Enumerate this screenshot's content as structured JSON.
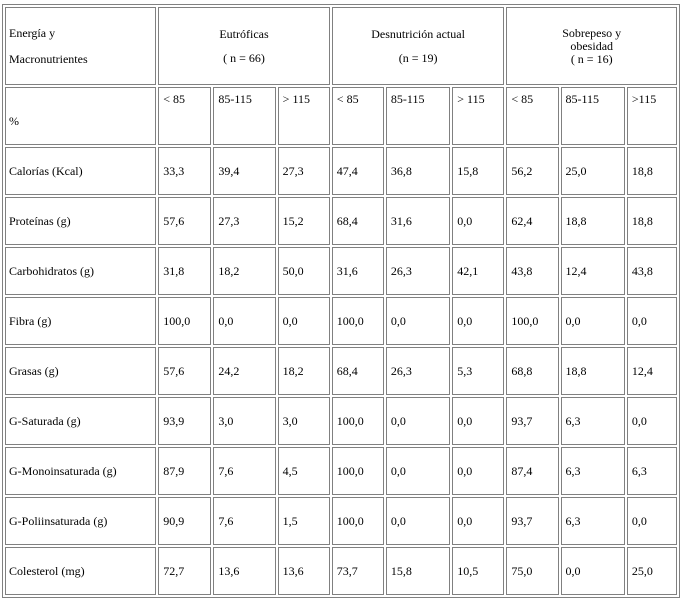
{
  "header": {
    "energy_line1": "Energía y",
    "energy_line2": "Macronutrientes",
    "groups": [
      {
        "title": "Eutróficas",
        "n": "( n = 66)"
      },
      {
        "title": "Desnutrición actual",
        "n": "(n = 19)"
      },
      {
        "title_line1": "Sobrepeso y",
        "title_line2": "obesidad",
        "n": "( n = 16)"
      }
    ],
    "percent_label": "%",
    "subheaders": [
      "< 85",
      "85-115",
      "> 115",
      "< 85",
      "85-115",
      "> 115",
      "< 85",
      "85-115",
      ">115"
    ]
  },
  "rows": [
    {
      "label": "Calorías (Kcal)",
      "values": [
        "33,3",
        "39,4",
        "27,3",
        "47,4",
        "36,8",
        "15,8",
        "56,2",
        "25,0",
        "18,8"
      ]
    },
    {
      "label": "Proteínas (g)",
      "values": [
        "57,6",
        "27,3",
        "15,2",
        "68,4",
        "31,6",
        "0,0",
        "62,4",
        "18,8",
        "18,8"
      ]
    },
    {
      "label": "Carbohidratos (g)",
      "values": [
        "31,8",
        "18,2",
        "50,0",
        "31,6",
        "26,3",
        "42,1",
        "43,8",
        "12,4",
        "43,8"
      ]
    },
    {
      "label": "Fibra (g)",
      "values": [
        "100,0",
        "0,0",
        "0,0",
        "100,0",
        "0,0",
        "0,0",
        "100,0",
        "0,0",
        "0,0"
      ]
    },
    {
      "label": "Grasas (g)",
      "values": [
        "57,6",
        "24,2",
        "18,2",
        "68,4",
        "26,3",
        "5,3",
        "68,8",
        "18,8",
        "12,4"
      ]
    },
    {
      "label": "G-Saturada (g)",
      "values": [
        "93,9",
        "3,0",
        "3,0",
        "100,0",
        "0,0",
        "0,0",
        "93,7",
        "6,3",
        "0,0"
      ]
    },
    {
      "label": "G-Monoinsaturada (g)",
      "values": [
        "87,9",
        "7,6",
        "4,5",
        "100,0",
        "0,0",
        "0,0",
        "87,4",
        "6,3",
        "6,3"
      ]
    },
    {
      "label": "G-Poliinsaturada (g)",
      "values": [
        "90,9",
        "7,6",
        "1,5",
        "100,0",
        "0,0",
        "0,0",
        "93,7",
        "6,3",
        "0,0"
      ]
    },
    {
      "label": "Colesterol (mg)",
      "values": [
        "72,7",
        "13,6",
        "13,6",
        "73,7",
        "15,8",
        "10,5",
        "75,0",
        "0,0",
        "25,0"
      ]
    }
  ]
}
